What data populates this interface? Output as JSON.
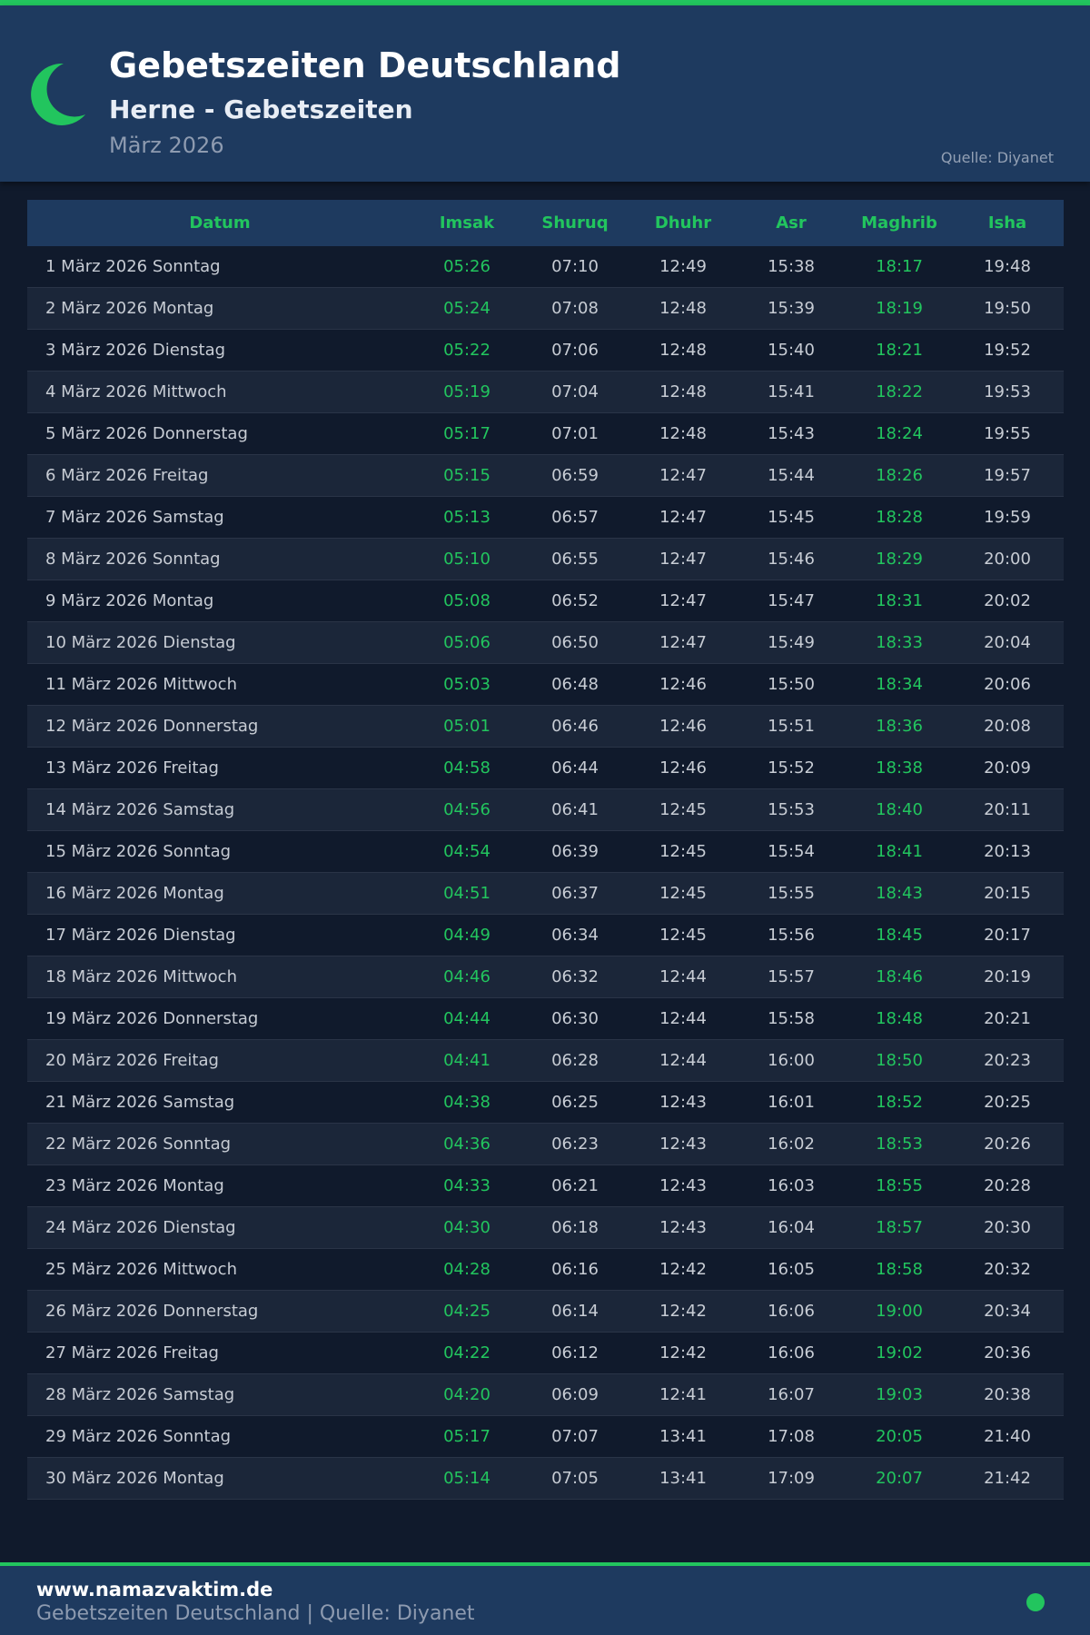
{
  "header": {
    "title": "Gebetszeiten Deutschland",
    "subtitle": "Herne - Gebetszeiten",
    "month": "März 2026",
    "source": "Quelle: Diyanet",
    "icon": "crescent-moon-icon"
  },
  "colors": {
    "accent": "#22c55e",
    "header_bg": "#1e3a5f",
    "page_bg": "#101a2c"
  },
  "table": {
    "columns": [
      "Datum",
      "Imsak",
      "Shuruq",
      "Dhuhr",
      "Asr",
      "Maghrib",
      "Isha"
    ],
    "rows": [
      [
        "1 März 2026 Sonntag",
        "05:26",
        "07:10",
        "12:49",
        "15:38",
        "18:17",
        "19:48"
      ],
      [
        "2 März 2026 Montag",
        "05:24",
        "07:08",
        "12:48",
        "15:39",
        "18:19",
        "19:50"
      ],
      [
        "3 März 2026 Dienstag",
        "05:22",
        "07:06",
        "12:48",
        "15:40",
        "18:21",
        "19:52"
      ],
      [
        "4 März 2026 Mittwoch",
        "05:19",
        "07:04",
        "12:48",
        "15:41",
        "18:22",
        "19:53"
      ],
      [
        "5 März 2026 Donnerstag",
        "05:17",
        "07:01",
        "12:48",
        "15:43",
        "18:24",
        "19:55"
      ],
      [
        "6 März 2026 Freitag",
        "05:15",
        "06:59",
        "12:47",
        "15:44",
        "18:26",
        "19:57"
      ],
      [
        "7 März 2026 Samstag",
        "05:13",
        "06:57",
        "12:47",
        "15:45",
        "18:28",
        "19:59"
      ],
      [
        "8 März 2026 Sonntag",
        "05:10",
        "06:55",
        "12:47",
        "15:46",
        "18:29",
        "20:00"
      ],
      [
        "9 März 2026 Montag",
        "05:08",
        "06:52",
        "12:47",
        "15:47",
        "18:31",
        "20:02"
      ],
      [
        "10 März 2026 Dienstag",
        "05:06",
        "06:50",
        "12:47",
        "15:49",
        "18:33",
        "20:04"
      ],
      [
        "11 März 2026 Mittwoch",
        "05:03",
        "06:48",
        "12:46",
        "15:50",
        "18:34",
        "20:06"
      ],
      [
        "12 März 2026 Donnerstag",
        "05:01",
        "06:46",
        "12:46",
        "15:51",
        "18:36",
        "20:08"
      ],
      [
        "13 März 2026 Freitag",
        "04:58",
        "06:44",
        "12:46",
        "15:52",
        "18:38",
        "20:09"
      ],
      [
        "14 März 2026 Samstag",
        "04:56",
        "06:41",
        "12:45",
        "15:53",
        "18:40",
        "20:11"
      ],
      [
        "15 März 2026 Sonntag",
        "04:54",
        "06:39",
        "12:45",
        "15:54",
        "18:41",
        "20:13"
      ],
      [
        "16 März 2026 Montag",
        "04:51",
        "06:37",
        "12:45",
        "15:55",
        "18:43",
        "20:15"
      ],
      [
        "17 März 2026 Dienstag",
        "04:49",
        "06:34",
        "12:45",
        "15:56",
        "18:45",
        "20:17"
      ],
      [
        "18 März 2026 Mittwoch",
        "04:46",
        "06:32",
        "12:44",
        "15:57",
        "18:46",
        "20:19"
      ],
      [
        "19 März 2026 Donnerstag",
        "04:44",
        "06:30",
        "12:44",
        "15:58",
        "18:48",
        "20:21"
      ],
      [
        "20 März 2026 Freitag",
        "04:41",
        "06:28",
        "12:44",
        "16:00",
        "18:50",
        "20:23"
      ],
      [
        "21 März 2026 Samstag",
        "04:38",
        "06:25",
        "12:43",
        "16:01",
        "18:52",
        "20:25"
      ],
      [
        "22 März 2026 Sonntag",
        "04:36",
        "06:23",
        "12:43",
        "16:02",
        "18:53",
        "20:26"
      ],
      [
        "23 März 2026 Montag",
        "04:33",
        "06:21",
        "12:43",
        "16:03",
        "18:55",
        "20:28"
      ],
      [
        "24 März 2026 Dienstag",
        "04:30",
        "06:18",
        "12:43",
        "16:04",
        "18:57",
        "20:30"
      ],
      [
        "25 März 2026 Mittwoch",
        "04:28",
        "06:16",
        "12:42",
        "16:05",
        "18:58",
        "20:32"
      ],
      [
        "26 März 2026 Donnerstag",
        "04:25",
        "06:14",
        "12:42",
        "16:06",
        "19:00",
        "20:34"
      ],
      [
        "27 März 2026 Freitag",
        "04:22",
        "06:12",
        "12:42",
        "16:06",
        "19:02",
        "20:36"
      ],
      [
        "28 März 2026 Samstag",
        "04:20",
        "06:09",
        "12:41",
        "16:07",
        "19:03",
        "20:38"
      ],
      [
        "29 März 2026 Sonntag",
        "05:17",
        "07:07",
        "13:41",
        "17:08",
        "20:05",
        "21:40"
      ],
      [
        "30 März 2026 Montag",
        "05:14",
        "07:05",
        "13:41",
        "17:09",
        "20:07",
        "21:42"
      ]
    ]
  },
  "footer": {
    "site": "www.namazvaktim.de",
    "text": "Gebetszeiten Deutschland | Quelle: Diyanet"
  }
}
